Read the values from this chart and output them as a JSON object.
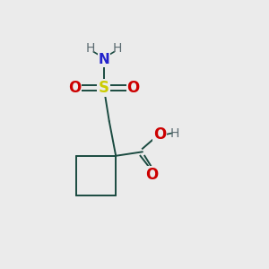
{
  "bg_color": "#ebebeb",
  "bond_color": "#1a4a40",
  "bond_lw": 1.4,
  "S_color": "#cccc00",
  "O_color": "#cc0000",
  "N_color": "#2222cc",
  "H_color": "#5a6a70",
  "font_size": 10,
  "fig_size": [
    3.0,
    3.0
  ],
  "dpi": 100,
  "xlim": [
    0,
    10
  ],
  "ylim": [
    0,
    10
  ]
}
